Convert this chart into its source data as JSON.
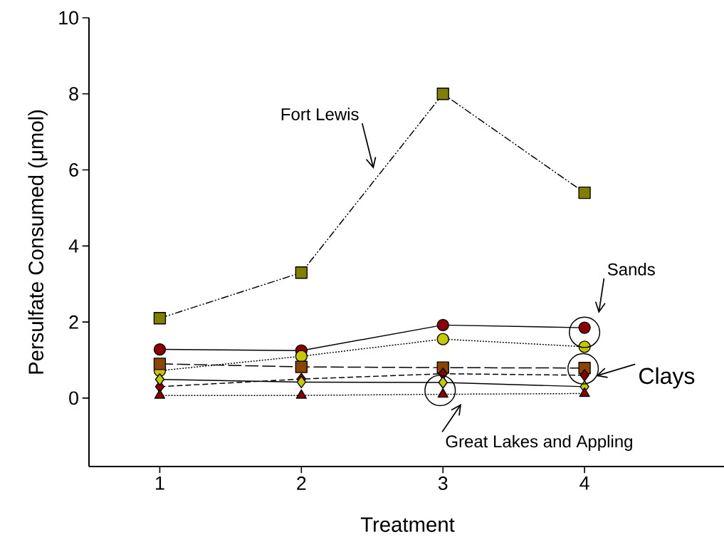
{
  "chart_data": {
    "type": "line",
    "xlabel": "Treatment",
    "ylabel": "Persulfate Consumed (μmol)",
    "x": [
      1,
      2,
      3,
      4
    ],
    "xlim": [
      0.5,
      5
    ],
    "ylim": [
      -1.8,
      10
    ],
    "xticks": [
      1,
      2,
      3,
      4
    ],
    "yticks": [
      0,
      2,
      4,
      6,
      8,
      10
    ],
    "series": [
      {
        "color": "#808000",
        "marker": "square",
        "line_style": "dashdotdotted",
        "values": [
          2.1,
          3.3,
          8.0,
          5.4
        ]
      },
      {
        "color": "#8b0000",
        "marker": "circle",
        "line_style": "solid",
        "values": [
          1.28,
          1.25,
          1.92,
          1.85
        ]
      },
      {
        "color": "#c8c800",
        "marker": "circle",
        "line_style": "dotted",
        "values": [
          0.72,
          1.1,
          1.55,
          1.35
        ]
      },
      {
        "color": "#8b4500",
        "marker": "square",
        "line_style": "longdashed",
        "values": [
          0.9,
          0.82,
          0.8,
          0.79
        ]
      },
      {
        "color": "#8b0000",
        "marker": "diamond",
        "line_style": "dashed",
        "values": [
          0.3,
          0.5,
          0.64,
          0.6
        ]
      },
      {
        "color": "#c8c800",
        "marker": "diamond",
        "line_style": "solid",
        "values": [
          0.49,
          0.42,
          0.41,
          0.3
        ]
      },
      {
        "color": "#8b0000",
        "marker": "triangle",
        "line_style": "dotted",
        "values": [
          0.07,
          0.07,
          0.1,
          0.12
        ]
      }
    ],
    "annotations": [
      "Fort Lewis",
      "Sands",
      "Clays",
      "Great Lakes and Appling"
    ]
  }
}
